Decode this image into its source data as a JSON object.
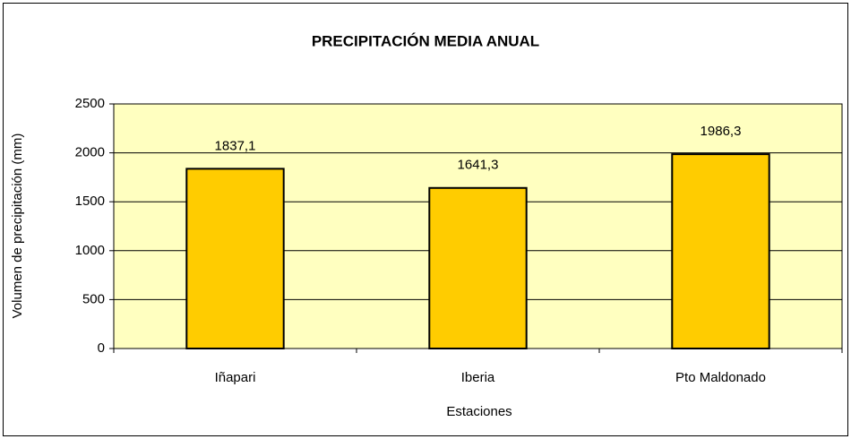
{
  "chart_data": {
    "type": "bar",
    "title": "PRECIPITACIÓN MEDIA ANUAL",
    "x_label": "Estaciones",
    "y_label": "Volumen de precipitación (mm)",
    "categories": [
      "Iñapari",
      "Iberia",
      "Pto Maldonado"
    ],
    "values": [
      1837.1,
      1641.3,
      1986.3
    ],
    "value_labels": [
      "1837,1",
      "1641,3",
      "1986,3"
    ],
    "color": "#ffcc00",
    "plot_background": "#ffffc0",
    "ylim": [
      0,
      2500
    ],
    "yticks": [
      0,
      500,
      1000,
      1500,
      2000,
      2500
    ],
    "grid": true
  }
}
